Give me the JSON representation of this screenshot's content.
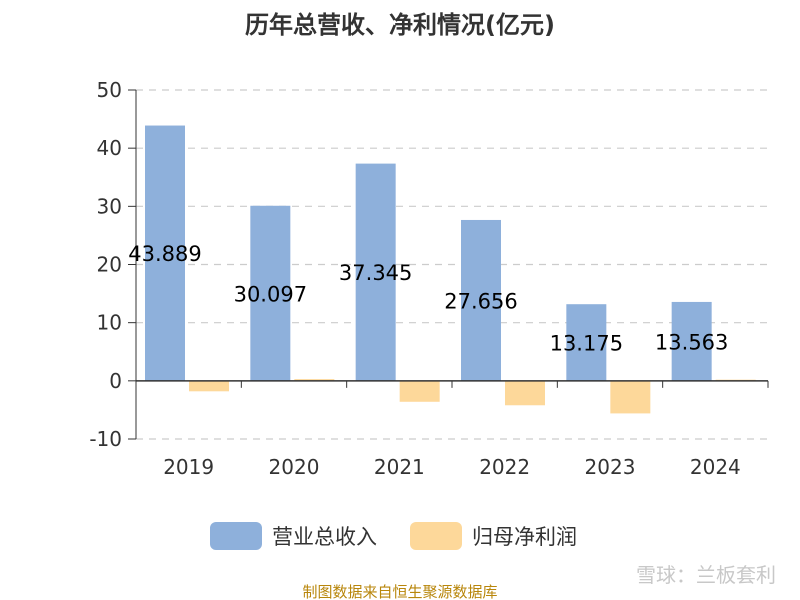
{
  "title": "历年总营收、净利情况(亿元)",
  "source": "制图数据来自恒生聚源数据库",
  "watermark": "雪球：兰板套利",
  "colors": {
    "revenue": "#8eb0db",
    "net_profit": "#fdd89a",
    "grid": "#cccccc",
    "axis": "#333333"
  },
  "chart_data": {
    "type": "bar",
    "categories": [
      "2019",
      "2020",
      "2021",
      "2022",
      "2023",
      "2024"
    ],
    "series": [
      {
        "name": "营业总收入",
        "values": [
          43.889,
          30.097,
          37.345,
          27.656,
          13.175,
          13.563
        ],
        "labels": [
          "43.889",
          "30.097",
          "37.345",
          "27.656",
          "13.175",
          "13.563"
        ]
      },
      {
        "name": "归母净利润",
        "values": [
          -1.8,
          0.3,
          -3.6,
          -4.2,
          -5.6,
          0.2
        ]
      }
    ],
    "yticks": [
      "50",
      "40",
      "30",
      "20",
      "10",
      "0",
      "-10"
    ],
    "ylim": [
      -10,
      50
    ],
    "grid": true,
    "legend_position": "bottom"
  }
}
